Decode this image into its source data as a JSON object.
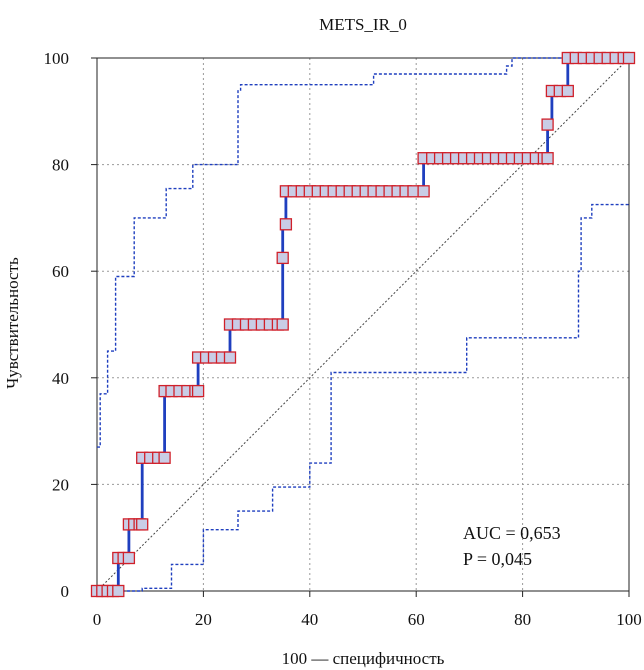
{
  "chart_data": {
    "type": "line",
    "title": "METS_IR_0",
    "xlabel": "100 — специфичность",
    "ylabel": "Чувствительность",
    "xlim": [
      0,
      100
    ],
    "ylim": [
      0,
      100
    ],
    "x_ticks": [
      "0",
      "20",
      "40",
      "60",
      "80",
      "100"
    ],
    "y_ticks": [
      "0",
      "20",
      "40",
      "60",
      "80",
      "100"
    ],
    "grid": true,
    "annotations": [
      "AUC = 0,653",
      "P = 0,045"
    ],
    "colors": {
      "roc": "#1f3fbf",
      "ci": "#1f3fbf",
      "marker_edge": "#d0202a",
      "marker_fill": "#c9cde6",
      "grid": "#9a9a9a"
    },
    "roc_curve": [
      [
        0,
        0
      ],
      [
        4,
        0
      ],
      [
        4,
        6.2
      ],
      [
        6,
        6.2
      ],
      [
        6,
        12.5
      ],
      [
        8.5,
        12.5
      ],
      [
        8.5,
        25
      ],
      [
        12.7,
        25
      ],
      [
        12.7,
        37.5
      ],
      [
        19,
        37.5
      ],
      [
        19,
        43.8
      ],
      [
        25,
        43.8
      ],
      [
        25,
        50
      ],
      [
        34.9,
        50
      ],
      [
        34.9,
        62.5
      ],
      [
        34.9,
        68.8
      ],
      [
        35.5,
        68.8
      ],
      [
        35.5,
        75
      ],
      [
        61.4,
        75
      ],
      [
        61.4,
        81.2
      ],
      [
        84.7,
        81.2
      ],
      [
        84.7,
        87.5
      ],
      [
        85.5,
        87.5
      ],
      [
        85.5,
        93.8
      ],
      [
        88.5,
        93.8
      ],
      [
        88.5,
        100
      ],
      [
        100,
        100
      ]
    ],
    "ci_upper": [
      [
        0,
        27
      ],
      [
        0.6,
        27
      ],
      [
        0.6,
        37
      ],
      [
        2,
        37
      ],
      [
        2,
        45
      ],
      [
        3.5,
        45
      ],
      [
        3.5,
        59
      ],
      [
        7,
        59
      ],
      [
        7,
        70
      ],
      [
        13,
        70
      ],
      [
        13,
        75.5
      ],
      [
        18,
        75.5
      ],
      [
        18,
        80
      ],
      [
        26.5,
        80
      ],
      [
        26.5,
        94
      ],
      [
        27,
        94
      ],
      [
        27,
        95
      ],
      [
        52,
        95
      ],
      [
        52,
        97
      ],
      [
        77,
        97
      ],
      [
        77,
        98.5
      ],
      [
        78,
        98.5
      ],
      [
        78,
        100
      ],
      [
        100,
        100
      ]
    ],
    "ci_lower": [
      [
        0,
        0
      ],
      [
        8.5,
        0
      ],
      [
        8.5,
        0.5
      ],
      [
        14,
        0.5
      ],
      [
        14,
        5
      ],
      [
        20,
        5
      ],
      [
        20,
        11.5
      ],
      [
        26.5,
        11.5
      ],
      [
        26.5,
        15
      ],
      [
        33,
        15
      ],
      [
        33,
        19.5
      ],
      [
        40,
        19.5
      ],
      [
        40,
        24
      ],
      [
        44,
        24
      ],
      [
        44,
        41
      ],
      [
        69.5,
        41
      ],
      [
        69.5,
        47.5
      ],
      [
        90.5,
        47.5
      ],
      [
        90.5,
        60
      ],
      [
        91,
        60
      ],
      [
        91,
        70
      ],
      [
        93,
        70
      ],
      [
        93,
        72.5
      ],
      [
        100,
        72.5
      ]
    ],
    "markers": [
      {
        "x": [
          0,
          1,
          2,
          3,
          4
        ],
        "y": 0
      },
      {
        "x": [
          4,
          5,
          6
        ],
        "y": 6.2
      },
      {
        "x": [
          6,
          7,
          8,
          8.5
        ],
        "y": 12.5
      },
      {
        "x": [
          8.5,
          10,
          11.5,
          12.7
        ],
        "y": 25
      },
      {
        "x": [
          12.7,
          14,
          15.5,
          17,
          18.5,
          19
        ],
        "y": 37.5
      },
      {
        "x": [
          19,
          20.5,
          22,
          23.5,
          25
        ],
        "y": 43.8
      },
      {
        "x": [
          25,
          26.5,
          28,
          29.5,
          31,
          32.5,
          34,
          34.9
        ],
        "y": 50
      },
      {
        "x": [
          34.9
        ],
        "y": 62.5
      },
      {
        "x": [
          35.5
        ],
        "y": 68.8
      },
      {
        "x": [
          35.5,
          37,
          38.5,
          40,
          41.5,
          43,
          44.5,
          46,
          47.5,
          49,
          50.5,
          52,
          53.5,
          55,
          56.5,
          58,
          59.5,
          61.4
        ],
        "y": 75
      },
      {
        "x": [
          61.4,
          63,
          64.5,
          66,
          67.5,
          69,
          70.5,
          72,
          73.5,
          75,
          76.5,
          78,
          79.5,
          81,
          82.5,
          84,
          84.7
        ],
        "y": 81.2
      },
      {
        "x": [
          84.7
        ],
        "y": 87.5
      },
      {
        "x": [
          85.5,
          87,
          88.5
        ],
        "y": 93.8
      },
      {
        "x": [
          88.5,
          90,
          91.5,
          93,
          94.5,
          96,
          97.5,
          99,
          100
        ],
        "y": 100
      }
    ]
  }
}
